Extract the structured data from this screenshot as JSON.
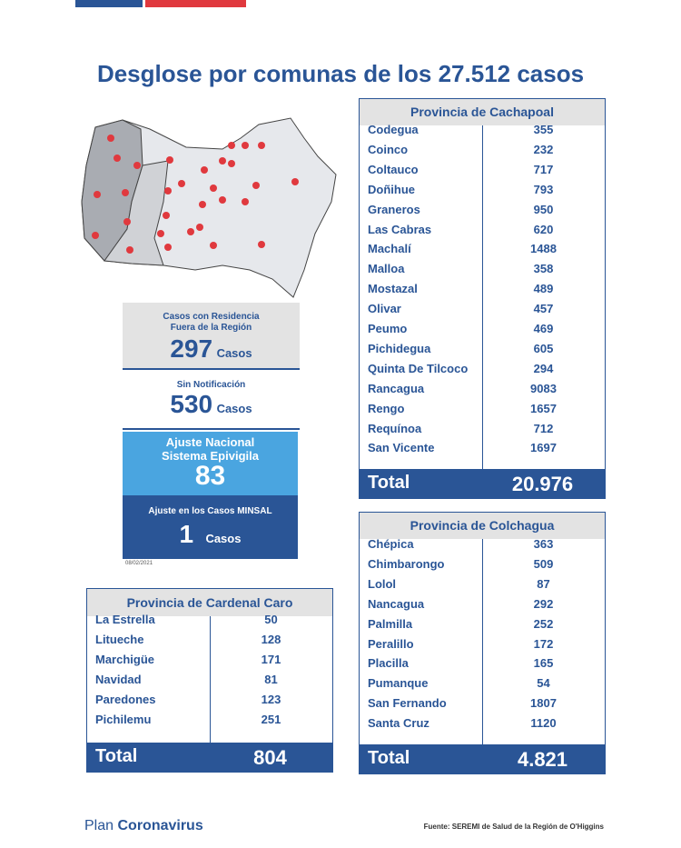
{
  "header": {
    "title": "Desglose por comunas de los 27.512 casos"
  },
  "boxes": {
    "fuera": {
      "label": "Casos con Residencia Fuera de la Región",
      "value": 297,
      "unit": "Casos"
    },
    "sin_notificacion": {
      "label": "Sin Notificación",
      "value": 530,
      "unit": "Casos"
    },
    "ajuste_nacional": {
      "label": "Ajuste Nacional Sistema Epivigila",
      "value": 83
    },
    "ajuste_minsal": {
      "label": "Ajuste en los Casos MINSAL",
      "value": 1,
      "unit": "Casos"
    },
    "date": "08/02/2021"
  },
  "tables": {
    "cachapoal": {
      "title": "Provincia de Cachapoal",
      "rows": [
        [
          "Codegua",
          355
        ],
        [
          "Coinco",
          232
        ],
        [
          "Coltauco",
          717
        ],
        [
          "Doñihue",
          793
        ],
        [
          "Graneros",
          950
        ],
        [
          "Las Cabras",
          620
        ],
        [
          "Machalí",
          1488
        ],
        [
          "Malloa",
          358
        ],
        [
          "Mostazal",
          489
        ],
        [
          "Olivar",
          457
        ],
        [
          "Peumo",
          469
        ],
        [
          "Pichidegua",
          605
        ],
        [
          "Quinta De Tilcoco",
          294
        ],
        [
          "Rancagua",
          9083
        ],
        [
          "Rengo",
          1657
        ],
        [
          "Requínoa",
          712
        ],
        [
          "San Vicente",
          1697
        ]
      ],
      "total_label": "Total",
      "total": "20.976"
    },
    "colchagua": {
      "title": "Provincia de Colchagua",
      "rows": [
        [
          "Chépica",
          363
        ],
        [
          "Chimbarongo",
          509
        ],
        [
          "Lolol",
          87
        ],
        [
          "Nancagua",
          292
        ],
        [
          "Palmilla",
          252
        ],
        [
          "Peralillo",
          172
        ],
        [
          "Placilla",
          165
        ],
        [
          "Pumanque",
          54
        ],
        [
          "San Fernando",
          1807
        ],
        [
          "Santa Cruz",
          1120
        ]
      ],
      "total_label": "Total",
      "total": "4.821"
    },
    "cardenal_caro": {
      "title": "Provincia de Cardenal Caro",
      "rows": [
        [
          "La Estrella",
          50
        ],
        [
          "Litueche",
          128
        ],
        [
          "Marchigüe",
          171
        ],
        [
          "Navidad",
          81
        ],
        [
          "Paredones",
          123
        ],
        [
          "Pichilemu",
          251
        ]
      ],
      "total_label": "Total",
      "total": 804
    }
  },
  "footer": {
    "plan": "Plan",
    "brand": "Coronavirus",
    "source": "Fuente: SEREMI de Salud de la Región de O'Higgins"
  }
}
